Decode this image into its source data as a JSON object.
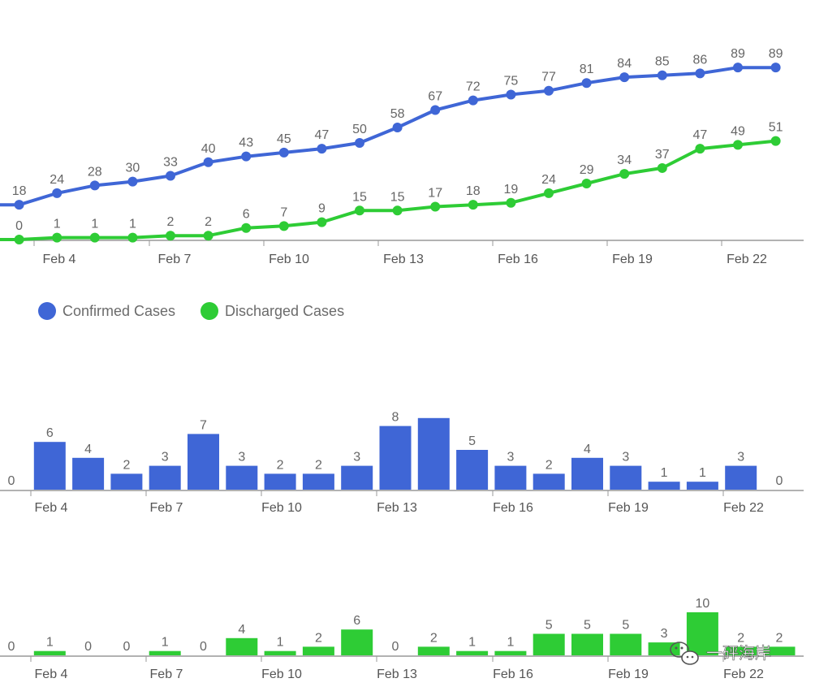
{
  "colors": {
    "confirmed": "#3f66d6",
    "discharged": "#2ecc35",
    "axis": "#999999",
    "label": "#666666"
  },
  "x_ticks": [
    "Feb 4",
    "Feb 7",
    "Feb 10",
    "Feb 13",
    "Feb 16",
    "Feb 19",
    "Feb 22"
  ],
  "legend": [
    {
      "label": "Confirmed Cases",
      "color": "#3f66d6"
    },
    {
      "label": "Discharged Cases",
      "color": "#2ecc35"
    }
  ],
  "watermark": "一砰海岸",
  "chart_data": [
    {
      "type": "line",
      "x": [
        "Feb 2",
        "Feb 3",
        "Feb 4",
        "Feb 5",
        "Feb 6",
        "Feb 7",
        "Feb 8",
        "Feb 9",
        "Feb 10",
        "Feb 11",
        "Feb 12",
        "Feb 13",
        "Feb 14",
        "Feb 15",
        "Feb 16",
        "Feb 17",
        "Feb 18",
        "Feb 19",
        "Feb 20",
        "Feb 21",
        "Feb 22",
        "Feb 23"
      ],
      "series": [
        {
          "name": "Confirmed Cases",
          "color": "#3f66d6",
          "values": [
            18,
            18,
            24,
            28,
            30,
            33,
            40,
            43,
            45,
            47,
            50,
            58,
            67,
            72,
            75,
            77,
            81,
            84,
            85,
            86,
            89,
            89
          ]
        },
        {
          "name": "Discharged Cases",
          "color": "#2ecc35",
          "values": [
            0,
            0,
            1,
            1,
            1,
            2,
            2,
            6,
            7,
            9,
            15,
            15,
            17,
            18,
            19,
            24,
            29,
            34,
            37,
            47,
            49,
            51
          ]
        }
      ],
      "shown_labels_confirmed": [
        null,
        18,
        24,
        28,
        30,
        33,
        40,
        43,
        45,
        47,
        50,
        58,
        67,
        72,
        75,
        77,
        81,
        84,
        85,
        86,
        89,
        89
      ],
      "shown_labels_discharged": [
        null,
        0,
        1,
        1,
        1,
        2,
        2,
        6,
        7,
        9,
        15,
        15,
        17,
        18,
        19,
        24,
        29,
        34,
        37,
        47,
        49,
        51
      ],
      "ylim": [
        0,
        100
      ],
      "legend": "bottom-left",
      "grid": false
    },
    {
      "type": "bar",
      "x": [
        "Feb 3",
        "Feb 4",
        "Feb 5",
        "Feb 6",
        "Feb 7",
        "Feb 8",
        "Feb 9",
        "Feb 10",
        "Feb 11",
        "Feb 12",
        "Feb 13",
        "Feb 14",
        "Feb 15",
        "Feb 16",
        "Feb 17",
        "Feb 18",
        "Feb 19",
        "Feb 20",
        "Feb 21",
        "Feb 22",
        "Feb 23"
      ],
      "values": [
        0,
        6,
        4,
        2,
        3,
        7,
        3,
        2,
        2,
        3,
        8,
        9,
        5,
        3,
        2,
        4,
        3,
        1,
        1,
        3,
        0
      ],
      "labels": [
        "0",
        "6",
        "4",
        "2",
        "3",
        "7",
        "3",
        "2",
        "2",
        "3",
        "8",
        "",
        "5",
        "3",
        "2",
        "4",
        "3",
        "1",
        "1",
        "3",
        "0"
      ],
      "color": "#3f66d6",
      "ylim": [
        0,
        10
      ],
      "grid": false
    },
    {
      "type": "bar",
      "x": [
        "Feb 3",
        "Feb 4",
        "Feb 5",
        "Feb 6",
        "Feb 7",
        "Feb 8",
        "Feb 9",
        "Feb 10",
        "Feb 11",
        "Feb 12",
        "Feb 13",
        "Feb 14",
        "Feb 15",
        "Feb 16",
        "Feb 17",
        "Feb 18",
        "Feb 19",
        "Feb 20",
        "Feb 21",
        "Feb 22",
        "Feb 23"
      ],
      "values": [
        0,
        1,
        0,
        0,
        1,
        0,
        4,
        1,
        2,
        6,
        0,
        2,
        1,
        1,
        5,
        5,
        5,
        3,
        10,
        2,
        2
      ],
      "labels": [
        "0",
        "1",
        "0",
        "0",
        "1",
        "0",
        "4",
        "1",
        "2",
        "6",
        "0",
        "2",
        "1",
        "1",
        "5",
        "5",
        "5",
        "3",
        "10",
        "2",
        "2"
      ],
      "color": "#2ecc35",
      "ylim": [
        0,
        10
      ],
      "grid": false
    }
  ]
}
